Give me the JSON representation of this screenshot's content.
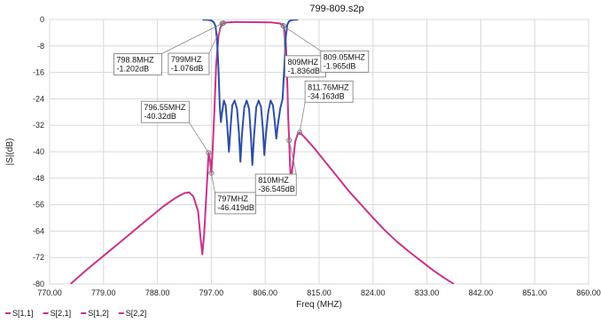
{
  "chart_data": {
    "type": "line",
    "title": "799-809.s2p",
    "xlabel": "Freq (MHZ)",
    "ylabel": "|S|(dB)",
    "xlim": [
      770,
      860
    ],
    "ylim": [
      -80,
      0
    ],
    "xticks": [
      "770.00",
      "779.00",
      "788.00",
      "797.00",
      "806.00",
      "815.00",
      "824.00",
      "833.00",
      "842.00",
      "851.00",
      "860.00"
    ],
    "yticks": [
      "0",
      "-8",
      "-16",
      "-24",
      "-32",
      "-40",
      "-48",
      "-56",
      "-64",
      "-72",
      "-80"
    ],
    "grid": true,
    "legend_position": "bottom-left",
    "legend": [
      "S[1,1]",
      "S[2,1]",
      "S[1,2]",
      "S[2,2]"
    ],
    "series": [
      {
        "name": "S[2,1]",
        "color": "#c8338a",
        "points": [
          [
            773.5,
            -80
          ],
          [
            776,
            -76
          ],
          [
            779,
            -71.5
          ],
          [
            782,
            -67
          ],
          [
            785,
            -62.5
          ],
          [
            787,
            -59.5
          ],
          [
            789,
            -56.5
          ],
          [
            791,
            -54
          ],
          [
            792.5,
            -52.5
          ],
          [
            793.3,
            -52.3
          ],
          [
            794,
            -53.5
          ],
          [
            794.8,
            -58
          ],
          [
            795.2,
            -66
          ],
          [
            795.5,
            -71
          ],
          [
            795.8,
            -65
          ],
          [
            796.2,
            -52
          ],
          [
            796.55,
            -40.32
          ],
          [
            796.8,
            -42.5
          ],
          [
            797.0,
            -46.419
          ],
          [
            797.2,
            -40
          ],
          [
            797.5,
            -28
          ],
          [
            797.8,
            -14
          ],
          [
            798.2,
            -5
          ],
          [
            798.5,
            -2.5
          ],
          [
            798.8,
            -1.202
          ],
          [
            799.0,
            -1.076
          ],
          [
            799.5,
            -0.9
          ],
          [
            801,
            -0.75
          ],
          [
            804,
            -0.8
          ],
          [
            807,
            -0.85
          ],
          [
            808.5,
            -1.2
          ],
          [
            809.0,
            -1.836
          ],
          [
            809.05,
            -1.965
          ],
          [
            809.3,
            -4
          ],
          [
            809.5,
            -9
          ],
          [
            809.7,
            -20
          ],
          [
            809.85,
            -30
          ],
          [
            810.0,
            -36.545
          ],
          [
            810.15,
            -44
          ],
          [
            810.3,
            -49
          ],
          [
            810.6,
            -44
          ],
          [
            811.0,
            -37
          ],
          [
            811.4,
            -34.8
          ],
          [
            811.76,
            -34.163
          ],
          [
            812.5,
            -35.5
          ],
          [
            814,
            -38.5
          ],
          [
            816,
            -43
          ],
          [
            818,
            -47.5
          ],
          [
            820,
            -52
          ],
          [
            822,
            -56
          ],
          [
            824,
            -60
          ],
          [
            826,
            -63.8
          ],
          [
            828,
            -67.2
          ],
          [
            830,
            -70.2
          ],
          [
            832,
            -73
          ],
          [
            834,
            -75.8
          ],
          [
            836,
            -78.3
          ],
          [
            837.5,
            -80
          ]
        ]
      },
      {
        "name": "S[1,1]",
        "color": "#2e4fa3",
        "points": [
          [
            795.5,
            0
          ],
          [
            796.5,
            -0.1
          ],
          [
            797.0,
            -0.3
          ],
          [
            797.4,
            -0.8
          ],
          [
            797.7,
            -2
          ],
          [
            797.95,
            -6
          ],
          [
            798.2,
            -15
          ],
          [
            798.4,
            -26
          ],
          [
            798.6,
            -31
          ],
          [
            798.8,
            -28
          ],
          [
            799.1,
            -24.5
          ],
          [
            799.4,
            -26
          ],
          [
            799.7,
            -33
          ],
          [
            799.95,
            -40
          ],
          [
            800.2,
            -33
          ],
          [
            800.5,
            -26
          ],
          [
            800.9,
            -24.5
          ],
          [
            801.3,
            -27
          ],
          [
            801.6,
            -34
          ],
          [
            801.85,
            -43
          ],
          [
            802.1,
            -35
          ],
          [
            802.5,
            -26.5
          ],
          [
            802.9,
            -24.5
          ],
          [
            803.3,
            -27
          ],
          [
            803.6,
            -35
          ],
          [
            803.85,
            -44
          ],
          [
            804.1,
            -36
          ],
          [
            804.5,
            -26.5
          ],
          [
            804.9,
            -24.5
          ],
          [
            805.3,
            -26.5
          ],
          [
            805.6,
            -33
          ],
          [
            805.85,
            -41
          ],
          [
            806.1,
            -35
          ],
          [
            806.5,
            -28
          ],
          [
            806.9,
            -24.5
          ],
          [
            807.3,
            -26
          ],
          [
            807.6,
            -31
          ],
          [
            807.85,
            -36
          ],
          [
            808.1,
            -32
          ],
          [
            808.5,
            -27
          ],
          [
            808.9,
            -24
          ],
          [
            809.2,
            -14
          ],
          [
            809.45,
            -5
          ],
          [
            809.7,
            -1.5
          ],
          [
            810.0,
            -0.5
          ],
          [
            810.5,
            -0.1
          ],
          [
            811.5,
            0
          ]
        ]
      }
    ],
    "annotations": [
      {
        "lines": [
          "798.8MHZ",
          "-1.202dB"
        ],
        "x": 798.8,
        "y": -1.202,
        "box": "left"
      },
      {
        "lines": [
          "799MHZ",
          "-1.076dB"
        ],
        "x": 799.0,
        "y": -1.076,
        "box": "left"
      },
      {
        "lines": [
          "809MHZ",
          "-1.836dB"
        ],
        "x": 809.0,
        "y": -1.836,
        "box": "right"
      },
      {
        "lines": [
          "809.05MHZ",
          "-1.965dB"
        ],
        "x": 809.05,
        "y": -1.965,
        "box": "right"
      },
      {
        "lines": [
          "796.55MHZ",
          "-40.32dB"
        ],
        "x": 796.55,
        "y": -40.32,
        "box": "left"
      },
      {
        "lines": [
          "797MHZ",
          "-46.419dB"
        ],
        "x": 797.0,
        "y": -46.419,
        "box": "right"
      },
      {
        "lines": [
          "810MHZ",
          "-36.545dB"
        ],
        "x": 810.0,
        "y": -36.545,
        "box": "left"
      },
      {
        "lines": [
          "811.76MHZ",
          "-34.163dB"
        ],
        "x": 811.76,
        "y": -34.163,
        "box": "right"
      }
    ]
  }
}
